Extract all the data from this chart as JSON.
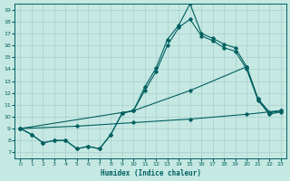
{
  "xlabel": "Humidex (Indice chaleur)",
  "bg_color": "#c5e8e2",
  "line_color": "#006060",
  "grid_color": "#a0c8c4",
  "xlim": [
    -0.5,
    23.5
  ],
  "ylim": [
    6.5,
    19.5
  ],
  "xticks": [
    0,
    1,
    2,
    3,
    4,
    5,
    6,
    7,
    8,
    9,
    10,
    11,
    12,
    13,
    14,
    15,
    16,
    17,
    18,
    19,
    20,
    21,
    22,
    23
  ],
  "yticks": [
    7,
    8,
    9,
    10,
    11,
    12,
    13,
    14,
    15,
    16,
    17,
    18,
    19
  ],
  "lines": [
    {
      "x": [
        0,
        1,
        2,
        3,
        4,
        5,
        6,
        7,
        8,
        9,
        10,
        11,
        12,
        13,
        14,
        15,
        16,
        17,
        18,
        19,
        20,
        21,
        22,
        23
      ],
      "y": [
        9,
        8.5,
        7.8,
        8,
        8,
        7.3,
        7.5,
        7.3,
        8.5,
        10.3,
        10.5,
        12.5,
        14.1,
        16.5,
        17.7,
        19.5,
        17.0,
        16.6,
        16.1,
        15.8,
        14.2,
        11.5,
        10.3,
        10.5
      ]
    },
    {
      "x": [
        0,
        1,
        2,
        3,
        4,
        5,
        6,
        7,
        8,
        9,
        10,
        11,
        12,
        13,
        14,
        15,
        16,
        17,
        18,
        19,
        20,
        21,
        22,
        23
      ],
      "y": [
        9,
        8.5,
        7.8,
        8,
        8,
        7.3,
        7.5,
        7.3,
        8.5,
        10.3,
        10.5,
        12.2,
        13.8,
        16.0,
        17.5,
        18.2,
        16.8,
        16.4,
        15.8,
        15.5,
        14.0,
        11.4,
        10.2,
        10.4
      ]
    },
    {
      "x": [
        0,
        5,
        10,
        15,
        20,
        23
      ],
      "y": [
        9,
        9.2,
        9.5,
        9.8,
        10.2,
        10.5
      ]
    },
    {
      "x": [
        0,
        10,
        15,
        20,
        21,
        22,
        23
      ],
      "y": [
        9,
        10.5,
        12.2,
        14.2,
        11.5,
        10.4,
        10.5
      ]
    }
  ]
}
